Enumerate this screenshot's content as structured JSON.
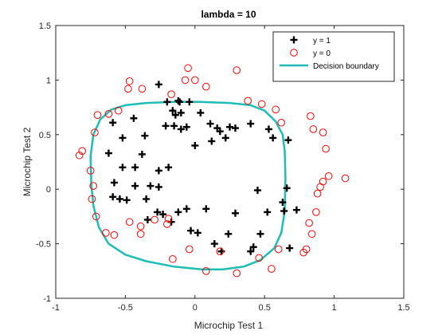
{
  "chart_data": {
    "type": "scatter",
    "title": "lambda = 10",
    "xlabel": "Microchip Test 1",
    "ylabel": "Microchip Test 2",
    "xlim": [
      -1,
      1.5
    ],
    "ylim": [
      -1,
      1.5
    ],
    "xticks": [
      -1,
      -0.5,
      0,
      0.5,
      1,
      1.5
    ],
    "xtick_labels": [
      "-1",
      "-0.5",
      "0",
      "0.5",
      "1",
      "1.5"
    ],
    "yticks": [
      -1,
      -0.5,
      0,
      0.5,
      1,
      1.5
    ],
    "ytick_labels": [
      "-1",
      "-0.5",
      "0",
      "0.5",
      "1",
      "1.5"
    ],
    "grid": false,
    "legend_position": "top-right",
    "colors": {
      "positive": "#000000",
      "negative": "#ff0000",
      "boundary": "#1ebdb6"
    },
    "series": [
      {
        "name": "y = 1",
        "marker": "plus",
        "points": [
          [
            -0.59,
            0.61
          ],
          [
            -0.52,
            0.47
          ],
          [
            -0.44,
            0.65
          ],
          [
            -0.62,
            0.33
          ],
          [
            -0.52,
            0.2
          ],
          [
            -0.43,
            0.2
          ],
          [
            -0.38,
            0.32
          ],
          [
            -0.36,
            0.49
          ],
          [
            -0.26,
            0.96
          ],
          [
            -0.21,
            0.58
          ],
          [
            -0.26,
            0.17
          ],
          [
            -0.32,
            0.03
          ],
          [
            -0.26,
            0.02
          ],
          [
            -0.19,
            0.2
          ],
          [
            -0.16,
            0.72
          ],
          [
            -0.11,
            0.8
          ],
          [
            -0.14,
            0.68
          ],
          [
            -0.15,
            0.58
          ],
          [
            -0.1,
            0.55
          ],
          [
            -0.1,
            0.7
          ],
          [
            -0.06,
            0.57
          ],
          [
            0,
            0.4
          ],
          [
            0.04,
            0.7
          ],
          [
            0.11,
            0.6
          ],
          [
            0.12,
            0.44
          ],
          [
            0.16,
            0.56
          ],
          [
            0.18,
            0.53
          ],
          [
            0.22,
            0.47
          ],
          [
            0.25,
            0.57
          ],
          [
            0.29,
            0.56
          ],
          [
            0.4,
            0.6
          ],
          [
            0.53,
            0.55
          ],
          [
            0.56,
            0.47
          ],
          [
            0.67,
            0.45
          ],
          [
            -0.2,
            0.8
          ],
          [
            -0.12,
            0.81
          ],
          [
            -0.04,
            0.8
          ],
          [
            -0.58,
            0.06
          ],
          [
            -0.59,
            -0.07
          ],
          [
            -0.54,
            -0.09
          ],
          [
            -0.49,
            -0.1
          ],
          [
            -0.43,
            0.03
          ],
          [
            -0.35,
            -0.09
          ],
          [
            -0.27,
            -0.21
          ],
          [
            -0.34,
            -0.28
          ],
          [
            -0.23,
            -0.23
          ],
          [
            -0.17,
            -0.3
          ],
          [
            -0.12,
            -0.21
          ],
          [
            -0.06,
            -0.18
          ],
          [
            -0.03,
            -0.38
          ],
          [
            0.02,
            -0.4
          ],
          [
            0.08,
            -0.18
          ],
          [
            0.14,
            -0.5
          ],
          [
            0.19,
            -0.57
          ],
          [
            0.24,
            -0.41
          ],
          [
            0.29,
            -0.22
          ],
          [
            0.4,
            -0.57
          ],
          [
            0.42,
            -0.53
          ],
          [
            0.47,
            -0.41
          ],
          [
            0.52,
            -0.21
          ],
          [
            0.45,
            -0.01
          ],
          [
            0.63,
            -0.12
          ],
          [
            0.64,
            -0.2
          ],
          [
            0.73,
            -0.19
          ],
          [
            0.68,
            -0.54
          ],
          [
            0.66,
            0.01
          ]
        ]
      },
      {
        "name": "y = 0",
        "marker": "circle",
        "points": [
          [
            -0.83,
            0.31
          ],
          [
            -0.72,
            0.52
          ],
          [
            -0.7,
            0.68
          ],
          [
            -0.62,
            0.69
          ],
          [
            -0.55,
            0.72
          ],
          [
            -0.48,
            0.92
          ],
          [
            -0.47,
            0.99
          ],
          [
            -0.38,
            0.92
          ],
          [
            -0.17,
            0.87
          ],
          [
            -0.07,
            1
          ],
          [
            -0.05,
            1.11
          ],
          [
            0,
            1
          ],
          [
            0.08,
            0.94
          ],
          [
            0.3,
            1.09
          ],
          [
            0.38,
            0.81
          ],
          [
            0.48,
            0.78
          ],
          [
            0.58,
            0.73
          ],
          [
            0.62,
            0.61
          ],
          [
            0.83,
            0.67
          ],
          [
            0.85,
            0.55
          ],
          [
            0.92,
            0.52
          ],
          [
            0.94,
            0.37
          ],
          [
            0.96,
            0.12
          ],
          [
            0.92,
            0.07
          ],
          [
            0.9,
            0.02
          ],
          [
            1.08,
            0.1
          ],
          [
            0.88,
            -0.04
          ],
          [
            0.87,
            -0.21
          ],
          [
            0.82,
            -0.31
          ],
          [
            0.84,
            -0.41
          ],
          [
            0.8,
            -0.55
          ],
          [
            0.78,
            -0.58
          ],
          [
            0.6,
            -0.55
          ],
          [
            0.55,
            -0.73
          ],
          [
            0.46,
            -0.63
          ],
          [
            0.3,
            -0.77
          ],
          [
            0.18,
            -0.57
          ],
          [
            0.08,
            -0.75
          ],
          [
            -0.04,
            -0.55
          ],
          [
            -0.16,
            -0.64
          ],
          [
            -0.2,
            -0.32
          ],
          [
            -0.19,
            -0.27
          ],
          [
            -0.29,
            -0.28
          ],
          [
            -0.39,
            -0.34
          ],
          [
            -0.39,
            -0.41
          ],
          [
            -0.47,
            -0.3
          ],
          [
            -0.58,
            -0.42
          ],
          [
            -0.64,
            -0.4
          ],
          [
            -0.71,
            -0.25
          ],
          [
            -0.74,
            -0.09
          ],
          [
            -0.73,
            0.03
          ],
          [
            -0.75,
            0.17
          ],
          [
            -0.81,
            0.35
          ]
        ]
      },
      {
        "name": "Decision boundary",
        "marker": "line",
        "points": [
          [
            0.65,
            0.1
          ],
          [
            0.645,
            0.35
          ],
          [
            0.63,
            0.5
          ],
          [
            0.58,
            0.62
          ],
          [
            0.5,
            0.72
          ],
          [
            0.4,
            0.77
          ],
          [
            0.25,
            0.79
          ],
          [
            0.05,
            0.8
          ],
          [
            -0.15,
            0.8
          ],
          [
            -0.35,
            0.79
          ],
          [
            -0.5,
            0.77
          ],
          [
            -0.6,
            0.73
          ],
          [
            -0.68,
            0.64
          ],
          [
            -0.73,
            0.5
          ],
          [
            -0.75,
            0.3
          ],
          [
            -0.745,
            0.05
          ],
          [
            -0.73,
            -0.15
          ],
          [
            -0.69,
            -0.35
          ],
          [
            -0.62,
            -0.5
          ],
          [
            -0.5,
            -0.6
          ],
          [
            -0.35,
            -0.66
          ],
          [
            -0.15,
            -0.71
          ],
          [
            0.05,
            -0.735
          ],
          [
            0.2,
            -0.735
          ],
          [
            0.35,
            -0.71
          ],
          [
            0.47,
            -0.65
          ],
          [
            0.57,
            -0.54
          ],
          [
            0.62,
            -0.4
          ],
          [
            0.645,
            -0.2
          ],
          [
            0.65,
            0.1
          ]
        ]
      }
    ]
  }
}
